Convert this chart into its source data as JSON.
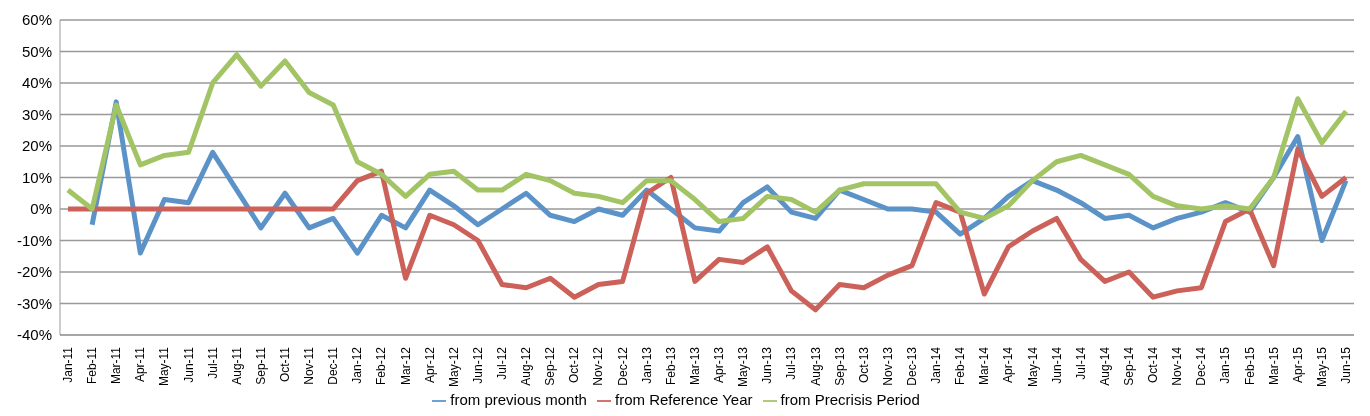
{
  "chart_data": {
    "type": "line",
    "categories": [
      "Jan-11",
      "Feb-11",
      "Mar-11",
      "Apr-11",
      "May-11",
      "Jun-11",
      "Jul-11",
      "Aug-11",
      "Sep-11",
      "Oct-11",
      "Nov-11",
      "Dec-11",
      "Jan-12",
      "Feb-12",
      "Mar-12",
      "Apr-12",
      "May-12",
      "Jun-12",
      "Jul-12",
      "Aug-12",
      "Sep-12",
      "Oct-12",
      "Nov-12",
      "Dec-12",
      "Jan-13",
      "Feb-13",
      "Mar-13",
      "Apr-13",
      "May-13",
      "Jun-13",
      "Jul-13",
      "Aug-13",
      "Sep-13",
      "Oct-13",
      "Nov-13",
      "Dec-13",
      "Jan-14",
      "Feb-14",
      "Mar-14",
      "Apr-14",
      "May-14",
      "Jun-14",
      "Jul-14",
      "Aug-14",
      "Sep-14",
      "Oct-14",
      "Nov-14",
      "Dec-14",
      "Jan-15",
      "Feb-15",
      "Mar-15",
      "Apr-15",
      "May-15",
      "Jun-15"
    ],
    "series": [
      {
        "name": "from previous month",
        "color": "#5b93c9",
        "values": [
          null,
          -5,
          34,
          -14,
          3,
          2,
          18,
          6,
          -6,
          5,
          -6,
          -3,
          -14,
          -2,
          -6,
          6,
          1,
          -5,
          0,
          5,
          -2,
          -4,
          0,
          -2,
          6,
          0,
          -6,
          -7,
          2,
          7,
          -1,
          -3,
          6,
          3,
          0,
          0,
          -1,
          -8,
          -3,
          4,
          9,
          6,
          2,
          -3,
          -2,
          -6,
          -3,
          -1,
          2,
          -1,
          10,
          23,
          -10,
          9
        ]
      },
      {
        "name": "from Reference Year",
        "color": "#cc615a",
        "values": [
          0,
          0,
          0,
          0,
          0,
          0,
          0,
          0,
          0,
          0,
          0,
          0,
          9,
          12,
          -22,
          -2,
          -5,
          -10,
          -24,
          -25,
          -22,
          -28,
          -24,
          -23,
          5,
          10,
          -23,
          -16,
          -17,
          -12,
          -26,
          -32,
          -24,
          -25,
          -21,
          -18,
          2,
          -1,
          -27,
          -12,
          -7,
          -3,
          -16,
          -23,
          -20,
          -28,
          -26,
          -25,
          -4,
          0,
          -18,
          19,
          4,
          10
        ]
      },
      {
        "name": "from Precrisis Period",
        "color": "#a2c465",
        "values": [
          6,
          0,
          33,
          14,
          17,
          18,
          40,
          49,
          39,
          47,
          37,
          33,
          15,
          11,
          4,
          11,
          12,
          6,
          6,
          11,
          9,
          5,
          4,
          2,
          9,
          9,
          3,
          -4,
          -3,
          4,
          3,
          -1,
          6,
          8,
          8,
          8,
          8,
          -1,
          -3,
          1,
          9,
          15,
          17,
          14,
          11,
          4,
          1,
          0,
          1,
          0,
          10,
          35,
          21,
          31
        ]
      }
    ],
    "ylim": [
      -40,
      60
    ],
    "yticks": [
      {
        "value": -40,
        "label": "-40%"
      },
      {
        "value": -30,
        "label": "-30%"
      },
      {
        "value": -20,
        "label": "-20%"
      },
      {
        "value": -10,
        "label": "-10%"
      },
      {
        "value": 0,
        "label": "0%"
      },
      {
        "value": 10,
        "label": "10%"
      },
      {
        "value": 20,
        "label": "20%"
      },
      {
        "value": 30,
        "label": "30%"
      },
      {
        "value": 40,
        "label": "40%"
      },
      {
        "value": 50,
        "label": "50%"
      },
      {
        "value": 60,
        "label": "60%"
      }
    ],
    "grid": "y",
    "legend": "bottom",
    "marker": "none",
    "line_style": "solid"
  }
}
